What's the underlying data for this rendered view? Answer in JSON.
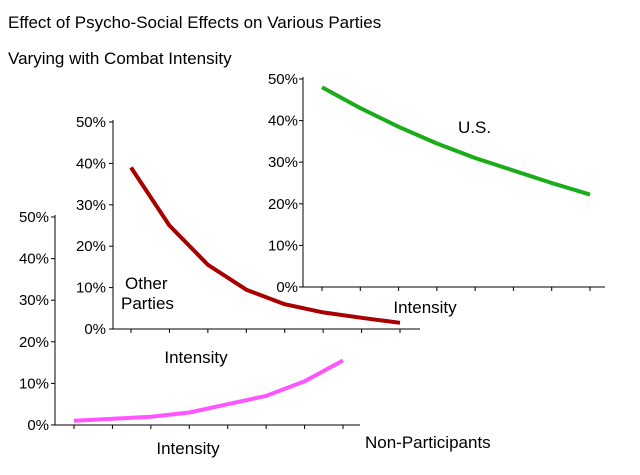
{
  "header": {
    "title": "Effect of Psycho-Social Effects on Various Parties",
    "subtitle": "Varying with Combat Intensity"
  },
  "chart_data": [
    {
      "type": "line",
      "name": "us",
      "series_label": "U.S.",
      "xlabel": "Intensity",
      "yticks": [
        "0%",
        "10%",
        "20%",
        "30%",
        "40%",
        "50%"
      ],
      "ylim": [
        0,
        50
      ],
      "x": [
        1,
        2,
        3,
        4,
        5,
        6,
        7,
        8
      ],
      "values": [
        48,
        43,
        38.5,
        34.5,
        31,
        28,
        25,
        22.2
      ],
      "color": "#1aad1a"
    },
    {
      "type": "line",
      "name": "other-parties",
      "series_label_lines": [
        "Other",
        "Parties"
      ],
      "xlabel": "Intensity",
      "yticks": [
        "0%",
        "10%",
        "20%",
        "30%",
        "40%",
        "50%"
      ],
      "ylim": [
        0,
        50
      ],
      "x": [
        1,
        2,
        3,
        4,
        5,
        6,
        7,
        8
      ],
      "values": [
        39,
        25,
        15.5,
        9.5,
        6,
        4,
        2.7,
        1.5
      ],
      "color": "#a80000"
    },
    {
      "type": "line",
      "name": "non-participants",
      "series_label": "Non-Participants",
      "xlabel": "Intensity",
      "yticks": [
        "0%",
        "10%",
        "20%",
        "30%",
        "40%",
        "50%"
      ],
      "ylim": [
        0,
        50
      ],
      "x": [
        1,
        2,
        3,
        4,
        5,
        6,
        7,
        8
      ],
      "values": [
        1,
        1.5,
        2,
        3,
        5,
        7,
        10.5,
        15.5
      ],
      "color": "#ff55ff"
    }
  ]
}
